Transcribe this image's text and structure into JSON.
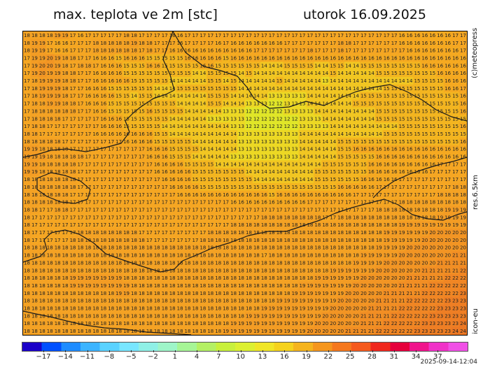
{
  "title": "max. teplota ve 2m [stc]",
  "date_label": "utorok 16.09.2025",
  "side_labels": {
    "copyright": "(c)meteopress",
    "resolution": "res.6.5km",
    "model": "icon-eu"
  },
  "timestamp": "2025-09-14-12:04",
  "colorbar": {
    "ticks": [
      "-17",
      "-14",
      "-11",
      "-8",
      "-5",
      "-2",
      "1",
      "4",
      "7",
      "10",
      "13",
      "16",
      "19",
      "22",
      "25",
      "28",
      "31",
      "34",
      "37"
    ],
    "colors": [
      "#1a00c8",
      "#0050ff",
      "#1e8cff",
      "#3cb4ff",
      "#5ad2ff",
      "#78e6ff",
      "#8ff0e6",
      "#9ef5c8",
      "#a6f596",
      "#b4f064",
      "#c8f03c",
      "#dcf032",
      "#f0e628",
      "#f5d21e",
      "#f5b41e",
      "#f5961e",
      "#f5781e",
      "#f55a1e",
      "#f0281e",
      "#e6003c",
      "#f0148c",
      "#f032c8",
      "#f050e6"
    ]
  },
  "map": {
    "legend_colors": {
      "11": "#d2e82e",
      "12": "#e0e628",
      "13": "#ecd824",
      "14": "#f1c622",
      "15": "#f3b520",
      "16": "#f5a921",
      "17": "#f5a623",
      "18": "#f4a224",
      "19": "#f39c24",
      "20": "#f29524",
      "21": "#f18e24",
      "22": "#f08624",
      "23": "#ee7e24",
      "24": "#ec7824"
    },
    "rows": [
      "18 18 18 18 19 19 17 16 17 17 17 17 17 18 18 17 17 17 17 16 16 17 17 17 17 17 17 17 17 17 17 17 17 17 17 17 17 17 17 17 17 17 17 17 17 17 17 17 17 16 16 16 16 16 16 16 17 17",
      "18 19 19 17 16 16 17 17 17 18 18 18 18 18 19 18 18 17 17 17 16 17 17 17 17 16 17 16 16 16 16 16 16 16 17 17 17 17 17 17 17 18 18 17 17 17 17 17 17 16 16 16 16 16 16 16 17 17",
      "18 19 19 17 16 16 17 17 17 18 18 18 18 18 18 17 18 17 17 16 16 16 16 16 16 16 16 16 16 16 17 17 17 17 17 17 17 18 17 17 17 18 17 17 17 17 17 17 17 17 16 16 16 16 16 16 16 17",
      "17 19 19 20 19 18 18 17 17 16 16 16 15 16 16 16 15 15 15 15 15 16 16 16 16 16 15 16 16 16 16 16 16 16 16 16 16 16 16 16 16 16 16 16 16 16 16 16 16 16 16 16 16 16 16 16 16 16",
      "17 19 20 20 19 18 17 18 18 17 16 16 16 15 15 15 16 16 15 15 15 15 15 16 16 15 15 15 15 15 15 14 14 14 15 15 15 15 14 14 15 15 14 14 15 15 15 15 15 15 15 15 16 16 16 16 16 16",
      "17 19 20 19 19 18 18 17 17 16 16 16 16 15 15 15 15 15 15 15 15 15 14 14 15 15 15 15 14 15 14 14 14 14 14 14 14 14 14 14 15 14 14 14 14 14 15 15 15 15 15 15 15 15 16 16 16 16",
      "17 18 19 19 19 18 18 17 17 16 16 16 16 16 15 15 15 15 15 14 14 14 14 14 15 15 14 15 14 14 14 14 14 15 14 14 14 14 14 13 14 14 14 14 14 14 14 14 14 14 14 15 15 15 15 16 16 16",
      "17 18 19 19 19 18 17 17 16 16 16 15 15 15 15 15 15 14 14 14 15 15 15 15 15 15 15 15 14 14 14 14 14 14 14 14 14 14 14 14 14 14 14 14 14 14 14 15 15 15 15 15 15 15 15 16 16 17",
      "17 18 19 19 19 18 17 17 16 16 16 16 15 15 14 15 15 14 14 14 14 14 14 14 15 15 15 14 14 14 14 14 13 13 13 13 13 14 14 14 14 14 14 14 15 15 15 15 15 15 15 15 15 15 15 15 15 16",
      "17 18 18 19 19 18 18 17 16 16 16 15 15 15 15 15 15 15 15 15 14 14 14 14 15 15 14 14 14 13 13 13 12 12 13 13 13 14 14 14 14 14 14 15 15 15 15 15 15 15 15 15 15 15 15 15 15 16",
      "17 18 18 18 18 18 18 17 17 16 16 15 15 15 15 15 16 15 15 15 15 14 14 14 14 14 13 13 13 12 12 12 12 12 13 13 13 13 14 14 14 14 14 14 14 14 15 15 15 15 15 15 15 15 15 15 15 16",
      "17 18 18 18 18 17 17 17 17 17 16 16 16 15 15 15 15 15 15 14 14 14 14 14 13 13 13 13 13 12 12 12 12 12 12 12 13 13 13 14 14 14 14 14 14 14 15 15 15 15 15 15 15 15 15 15 15 15",
      "17 18 18 17 17 17 17 17 17 17 16 16 16 15 15 15 15 15 14 14 14 14 14 14 14 14 14 13 13 12 12 12 12 12 12 12 13 13 13 13 14 14 14 14 14 14 14 14 14 15 15 15 15 15 15 15 15 16",
      "18 18 17 17 17 17 17 17 17 16 16 16 16 16 16 16 16 15 15 14 14 14 14 14 14 14 14 14 13 13 13 13 13 13 13 13 14 14 14 14 14 14 14 14 14 14 14 15 15 15 15 15 15 15 15 15 15 15",
      "18 18 18 18 18 17 17 17 17 17 17 17 17 16 16 16 16 15 15 15 15 15 14 14 14 14 14 14 13 13 13 13 13 13 13 13 14 14 14 14 14 15 15 15 15 15 15 15 15 15 15 15 15 15 15 15 15 16",
      "19 19 18 18 18 18 17 17 17 17 17 17 17 17 17 17 16 16 16 15 15 15 15 14 14 14 14 14 13 13 13 13 13 13 13 13 14 14 14 14 14 15 15 16 16 16 16 16 16 16 16 16 16 16 16 16 16 16",
      "19 19 19 18 18 18 18 18 17 17 17 17 17 17 17 17 16 16 16 15 15 15 14 14 14 14 14 13 13 13 13 13 13 13 13 13 14 14 14 14 14 15 15 15 15 15 16 16 16 16 16 16 16 16 16 16 16 16",
      "19 19 18 18 18 18 18 17 17 17 17 17 17 17 17 17 17 16 16 16 16 15 15 15 15 14 14 14 14 14 14 14 14 14 14 14 14 14 14 15 15 15 15 15 15 16 16 16 16 16 16 16 16 16 17 17 17 17",
      "19 19 18 18 18 18 18 17 17 17 17 17 17 17 17 17 17 16 16 16 16 16 15 15 15 15 15 15 15 14 14 14 14 14 14 14 14 14 15 15 15 15 15 15 15 16 16 16 16 16 16 16 16 17 17 17 17 17",
      "18 18 18 18 18 18 18 17 17 17 17 17 17 17 17 17 17 17 16 16 16 16 15 15 15 15 15 15 15 15 14 14 14 14 14 14 14 14 15 15 15 15 15 15 16 16 16 16 16 17 17 17 17 17 17 17 17 17",
      "18 18 18 18 18 18 18 17 17 17 17 17 17 17 17 17 17 17 17 16 16 16 16 15 15 15 15 15 15 15 15 15 15 15 15 15 15 15 15 15 15 16 16 16 16 16 17 17 17 17 17 17 17 17 17 17 18 18",
      "18 18 18 18 18 18 17 17 17 17 17 17 17 17 17 17 17 17 17 17 16 16 16 16 16 16 16 16 16 16 16 16 15 16 16 16 16 16 16 16 16 16 16 17 17 17 17 17 17 17 17 17 17 17 18 18 18 18",
      "18 18 18 18 18 18 17 17 17 17 17 17 17 17 17 17 17 17 17 17 17 17 17 17 17 17 17 16 16 16 16 16 16 16 16 16 16 17 17 17 17 17 17 17 17 17 17 17 17 18 18 18 18 18 18 18 18 18",
      "18 18 17 17 18 18 17 17 17 17 17 17 17 17 17 17 17 17 17 17 17 17 17 17 17 17 17 17 17 17 17 17 17 17 17 17 17 17 17 17 17 17 17 17 17 17 18 18 18 18 18 18 18 18 18 19 19 19",
      "18 17 17 17 17 17 17 17 17 17 17 17 17 17 17 17 17 17 17 17 17 17 17 17 17 17 17 17 17 17 17 18 18 18 18 18 18 18 18 17 17 18 18 18 18 18 18 18 18 18 18 18 18 18 19 19 19 19",
      "18 17 17 17 17 17 17 17 17 17 17 17 17 17 17 17 17 17 17 17 17 17 17 17 17 17 17 18 18 18 18 18 18 18 18 18 18 18 18 18 18 18 18 18 18 18 18 18 18 19 19 19 19 19 19 19 19 19",
      "18 17 17 17 17 17 17 18 18 18 18 18 18 18 18 17 17 17 17 17 17 17 17 17 18 18 18 18 18 18 18 18 18 18 18 18 18 18 18 18 18 18 18 18 18 18 18 19 19 19 19 19 19 20 20 20 20 20",
      "18 17 17 17 17 17 18 18 18 18 18 18 18 18 18 18 17 17 17 17 17 17 17 18 18 18 18 18 18 18 18 18 18 18 18 18 18 18 18 18 18 18 18 18 18 18 18 19 19 19 19 19 20 20 20 20 20 20",
      "18 18 18 18 18 18 18 18 18 18 18 18 18 18 18 18 18 18 18 18 18 18 18 18 18 18 18 18 18 18 18 18 18 18 18 18 18 18 18 18 18 18 18 18 18 18 19 19 19 19 20 20 20 20 20 20 20 20",
      "18 18 18 18 18 18 18 18 18 18 18 18 18 18 18 18 18 18 18 18 18 18 18 18 18 18 18 18 18 18 18 17 18 18 18 18 18 18 18 18 18 18 18 18 19 19 19 19 19 20 20 20 20 20 20 20 21 21",
      "18 18 18 18 18 18 18 18 18 18 18 18 18 18 18 18 18 18 18 18 18 18 18 18 18 18 18 18 18 18 18 18 18 18 18 18 18 18 18 18 18 18 18 19 19 19 19 20 20 20 20 20 20 20 21 21 21 21",
      "18 18 18 18 18 18 18 18 18 18 18 18 18 18 18 18 18 18 18 18 18 18 18 18 18 18 18 18 18 18 18 18 18 18 18 18 18 18 18 18 19 19 19 19 19 19 20 20 20 20 20 20 21 21 21 21 21 22",
      "18 18 18 18 18 18 19 19 19 19 19 19 19 18 18 18 18 18 18 18 18 18 18 18 18 18 18 18 18 18 18 18 18 18 18 18 18 18 19 19 19 19 19 19 20 20 20 20 20 20 21 21 21 21 21 22 22 22",
      "18 18 18 18 18 18 19 19 19 19 19 19 19 19 18 18 18 18 18 18 18 18 18 18 18 18 18 18 18 18 18 18 18 18 18 18 19 19 19 19 19 19 19 20 20 20 20 20 20 21 21 21 21 22 22 22 22 22",
      "18 18 18 18 18 18 18 18 18 18 18 18 19 19 18 18 18 18 18 18 18 18 18 18 18 18 18 18 18 18 18 18 18 18 18 19 19 19 19 19 19 19 20 20 20 20 20 21 21 21 21 21 22 22 22 22 22 23",
      "18 18 18 18 18 18 18 18 18 18 18 18 18 18 18 18 18 18 18 18 18 18 18 18 18 18 18 18 18 18 18 18 18 19 19 19 19 19 19 19 19 20 20 20 20 20 21 21 21 21 22 22 22 22 22 23 23 23",
      "18 18 18 18 18 18 18 18 18 18 18 18 18 18 18 18 18 18 18 18 18 18 18 18 18 18 18 18 18 18 18 19 19 19 19 19 19 19 19 19 20 20 20 20 20 21 21 21 21 22 22 22 22 22 23 23 23 23",
      "18 18 18 18 18 18 18 18 18 18 18 18 18 18 18 18 18 18 18 18 18 18 18 18 18 18 18 18 18 19 19 19 19 19 19 19 19 19 19 20 20 20 20 20 21 21 21 21 22 22 22 22 22 23 23 23 23 23",
      "18 18 18 18 18 18 18 18 18 18 18 18 18 18 18 18 18 18 18 18 18 18 18 18 18 18 18 19 19 19 19 19 19 19 19 19 19 19 20 20 20 20 20 20 21 21 21 22 22 22 22 22 23 23 23 23 23 24",
      "18 18 18 18 18 18 18 18 18 18 18 18 18 18 18 18 18 18 18 18 18 18 18 18 18 18 19 19 19 19 19 19 19 19 19 19 19 20 20 20 20 20 21 21 21 21 22 22 22 22 22 23 23 23 23 23 24 24"
    ]
  }
}
